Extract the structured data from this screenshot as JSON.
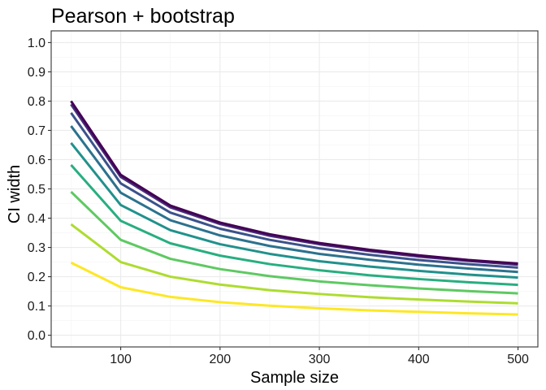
{
  "chart_data": {
    "type": "line",
    "title": "Pearson + bootstrap",
    "xlabel": "Sample size",
    "ylabel": "CI width",
    "xlim": [
      30,
      520
    ],
    "ylim": [
      -0.04,
      1.04
    ],
    "x_ticks": [
      100,
      200,
      300,
      400,
      500
    ],
    "x_minor_ticks": [
      50,
      150,
      250,
      350,
      450
    ],
    "y_ticks": [
      0.0,
      0.1,
      0.2,
      0.3,
      0.4,
      0.5,
      0.6,
      0.7,
      0.8,
      0.9,
      1.0
    ],
    "y_tick_labels": [
      "0.0",
      "0.1",
      "0.2",
      "0.3",
      "0.4",
      "0.5",
      "0.6",
      "0.7",
      "0.8",
      "0.9",
      "1.0"
    ],
    "grid": true,
    "legend": "none",
    "x": [
      50,
      100,
      150,
      200,
      250,
      300,
      350,
      400,
      450,
      500
    ],
    "series": [
      {
        "color": "#440154",
        "values": [
          0.8,
          0.548,
          0.443,
          0.385,
          0.345,
          0.315,
          0.292,
          0.273,
          0.257,
          0.245
        ]
      },
      {
        "color": "#472d7b",
        "values": [
          0.789,
          0.541,
          0.437,
          0.38,
          0.34,
          0.311,
          0.288,
          0.269,
          0.254,
          0.241
        ]
      },
      {
        "color": "#3b528b",
        "values": [
          0.76,
          0.519,
          0.419,
          0.364,
          0.326,
          0.297,
          0.275,
          0.257,
          0.243,
          0.231
        ]
      },
      {
        "color": "#2c728e",
        "values": [
          0.715,
          0.487,
          0.393,
          0.341,
          0.305,
          0.278,
          0.258,
          0.241,
          0.228,
          0.216
        ]
      },
      {
        "color": "#21918c",
        "values": [
          0.657,
          0.445,
          0.359,
          0.311,
          0.278,
          0.253,
          0.235,
          0.22,
          0.207,
          0.197
        ]
      },
      {
        "color": "#28ae80",
        "values": [
          0.582,
          0.391,
          0.314,
          0.272,
          0.243,
          0.222,
          0.205,
          0.192,
          0.181,
          0.172
        ]
      },
      {
        "color": "#5ec962",
        "values": [
          0.49,
          0.326,
          0.261,
          0.226,
          0.202,
          0.184,
          0.171,
          0.16,
          0.151,
          0.143
        ]
      },
      {
        "color": "#addc30",
        "values": [
          0.379,
          0.25,
          0.2,
          0.173,
          0.154,
          0.141,
          0.13,
          0.122,
          0.115,
          0.109
        ]
      },
      {
        "color": "#fde725",
        "values": [
          0.248,
          0.164,
          0.131,
          0.113,
          0.101,
          0.092,
          0.085,
          0.08,
          0.075,
          0.071
        ]
      }
    ]
  }
}
